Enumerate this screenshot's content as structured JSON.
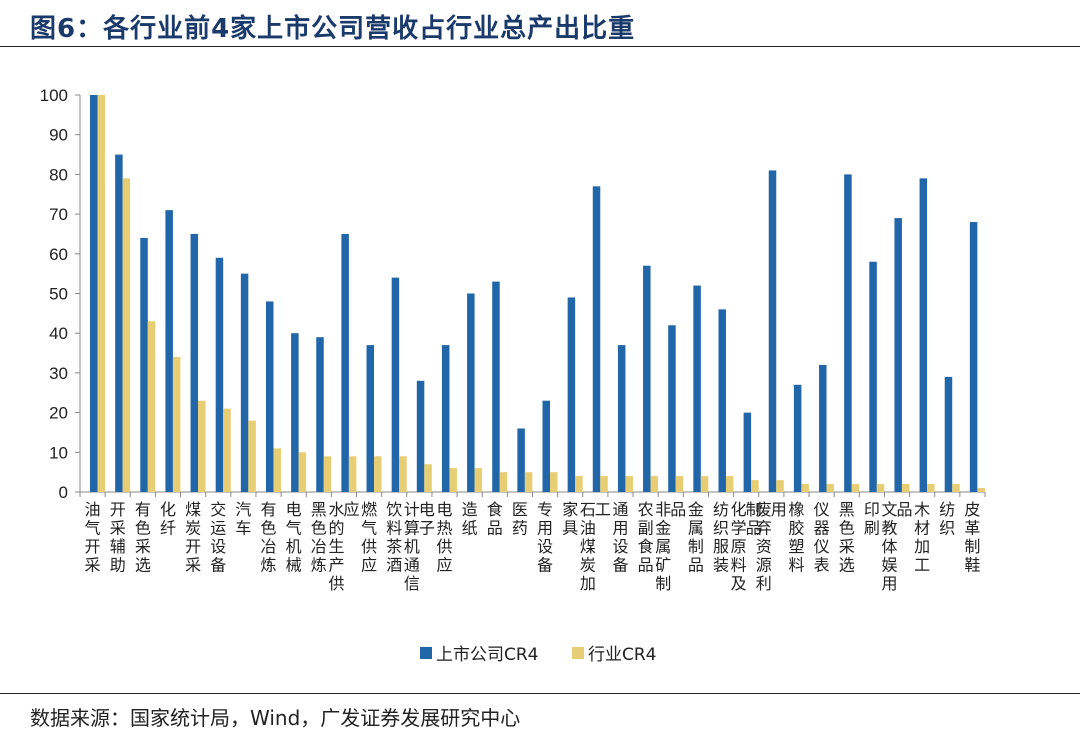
{
  "header": {
    "title": "图6：各行业前4家上市公司营收占行业总产出比重"
  },
  "footer": {
    "source": "数据来源：国家统计局，Wind，广发证券发展研究中心"
  },
  "colors": {
    "series1": "#2166a8",
    "series2": "#e7cd73",
    "axis": "#888888"
  },
  "chart_data": {
    "type": "bar",
    "title": "各行业前4家上市公司营收占行业总产出比重",
    "xlabel": "",
    "ylabel": "",
    "ylim": [
      0,
      100
    ],
    "yticks": [
      0,
      10,
      20,
      30,
      40,
      50,
      60,
      70,
      80,
      90,
      100
    ],
    "legend_position": "bottom-center",
    "categories": [
      "油气开采",
      "开采辅助",
      "有色采选",
      "化纤",
      "煤炭开采",
      "交运设备",
      "汽车",
      "有色冶炼",
      "电气机械",
      "黑色冶炼",
      "水的生产供应",
      "燃气供应",
      "饮料茶酒",
      "计算机通信电子",
      "电热供应",
      "造纸",
      "食品",
      "医药",
      "专用设备",
      "家具",
      "石油煤炭加工",
      "通用设备",
      "农副食品",
      "非金属矿制品",
      "金属制品",
      "纺织服装",
      "化学原料及制品",
      "废弃资源利用",
      "橡胶塑料",
      "仪器仪表",
      "黑色采选",
      "印刷",
      "文教体娱用品",
      "木材加工",
      "纺织",
      "皮革制鞋"
    ],
    "series": [
      {
        "name": "上市公司CR4",
        "values": [
          100,
          85,
          64,
          71,
          65,
          59,
          55,
          48,
          40,
          39,
          65,
          37,
          54,
          28,
          37,
          50,
          53,
          16,
          23,
          49,
          77,
          37,
          57,
          42,
          52,
          46,
          20,
          81,
          27,
          32,
          80,
          58,
          69,
          79,
          29,
          68
        ]
      },
      {
        "name": "行业CR4",
        "values": [
          100,
          79,
          43,
          34,
          23,
          21,
          18,
          11,
          10,
          9,
          9,
          9,
          9,
          7,
          6,
          6,
          5,
          5,
          5,
          4,
          4,
          4,
          4,
          4,
          4,
          4,
          3,
          3,
          2,
          2,
          2,
          2,
          2,
          2,
          2,
          1
        ]
      }
    ]
  }
}
